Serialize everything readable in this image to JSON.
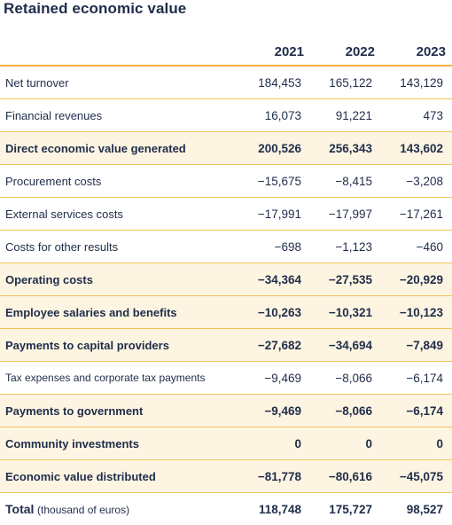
{
  "title": "Retained economic value",
  "years": [
    "2021",
    "2022",
    "2023"
  ],
  "rows": [
    {
      "label": "Net turnover",
      "v": [
        "184,453",
        "165,122",
        "143,129"
      ],
      "highlight": false
    },
    {
      "label": "Financial revenues",
      "v": [
        "16,073",
        "91,221",
        "473"
      ],
      "highlight": false
    },
    {
      "label": "Direct economic value generated",
      "v": [
        "200,526",
        "256,343",
        "143,602"
      ],
      "highlight": true
    },
    {
      "label": "Procurement costs",
      "v": [
        "−15,675",
        "−8,415",
        "−3,208"
      ],
      "highlight": false
    },
    {
      "label": "External services costs",
      "v": [
        "−17,991",
        "−17,997",
        "−17,261"
      ],
      "highlight": false
    },
    {
      "label": "Costs for other results",
      "v": [
        "−698",
        "−1,123",
        "−460"
      ],
      "highlight": false
    },
    {
      "label": "Operating costs",
      "v": [
        "−34,364",
        "−27,535",
        "−20,929"
      ],
      "highlight": true
    },
    {
      "label": "Employee salaries and benefits",
      "v": [
        "−10,263",
        "−10,321",
        "−10,123"
      ],
      "highlight": true
    },
    {
      "label": "Payments to capital providers",
      "v": [
        "−27,682",
        "−34,694",
        "−7,849"
      ],
      "highlight": true
    },
    {
      "label": "Tax expenses and corporate tax payments",
      "v": [
        "−9,469",
        "−8,066",
        "−6,174"
      ],
      "highlight": false
    },
    {
      "label": "Payments to government",
      "v": [
        "−9,469",
        "−8,066",
        "−6,174"
      ],
      "highlight": true
    },
    {
      "label": "Community investments",
      "v": [
        "0",
        "0",
        "0"
      ],
      "highlight": true
    },
    {
      "label": "Economic value distributed",
      "v": [
        "−81,778",
        "−80,616",
        "−45,075"
      ],
      "highlight": true
    }
  ],
  "total": {
    "label": "Total",
    "unit": "(thousand of euros)",
    "v": [
      "118,748",
      "175,727",
      "98,527"
    ]
  },
  "colors": {
    "text": "#1f2d4a",
    "rule": "#f2b53a",
    "highlight_bg": "#fdf5e2"
  }
}
